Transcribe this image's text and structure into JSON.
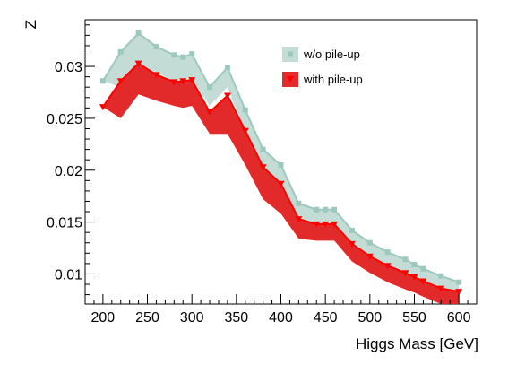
{
  "chart_data": {
    "type": "area",
    "xlabel": "Higgs Mass [GeV]",
    "ylabel": "Z",
    "xlim": [
      180,
      620
    ],
    "ylim": [
      0.0071,
      0.0345
    ],
    "x_ticks": [
      200,
      250,
      300,
      350,
      400,
      450,
      500,
      550,
      600
    ],
    "x_tick_labels": [
      "200",
      "250",
      "300",
      "350",
      "400",
      "450",
      "500",
      "550",
      "600"
    ],
    "y_ticks": [
      0.01,
      0.015,
      0.02,
      0.025,
      0.03
    ],
    "y_tick_labels": [
      "0.01",
      "0.015",
      "0.02",
      "0.025",
      "0.03"
    ],
    "grid": false,
    "legend_position": "top-right",
    "x": [
      200,
      220,
      240,
      260,
      280,
      290,
      300,
      320,
      340,
      360,
      380,
      400,
      420,
      440,
      450,
      460,
      480,
      500,
      520,
      540,
      550,
      560,
      580,
      600
    ],
    "series": [
      {
        "name": "w/o pile-up",
        "color": "#9cc8bd",
        "marker": "square",
        "values": [
          0.0286,
          0.0314,
          0.0332,
          0.0319,
          0.0311,
          0.0309,
          0.0312,
          0.028,
          0.0299,
          0.0258,
          0.022,
          0.0205,
          0.0168,
          0.0162,
          0.0162,
          0.0162,
          0.0142,
          0.013,
          0.0121,
          0.0114,
          0.0109,
          0.0105,
          0.0098,
          0.0092
        ],
        "band_low": [
          0.0286,
          0.028,
          0.0304,
          0.0294,
          0.0286,
          0.0288,
          0.0289,
          0.0262,
          0.028,
          0.0238,
          0.0202,
          0.0188,
          0.0152,
          0.0148,
          0.0148,
          0.0148,
          0.0128,
          0.0118,
          0.0109,
          0.0102,
          0.0098,
          0.0094,
          0.0087,
          0.0084
        ]
      },
      {
        "name": "with pile-up",
        "color": "#ff0000",
        "marker": "triangle-down",
        "values": [
          0.0261,
          0.0286,
          0.0303,
          0.0292,
          0.0285,
          0.0286,
          0.0287,
          0.0256,
          0.0272,
          0.0238,
          0.0203,
          0.0187,
          0.0153,
          0.0148,
          0.0148,
          0.0148,
          0.0129,
          0.0117,
          0.0108,
          0.0101,
          0.0097,
          0.0093,
          0.0086,
          0.0083
        ],
        "band_low": [
          0.0261,
          0.025,
          0.0273,
          0.0267,
          0.0262,
          0.026,
          0.0262,
          0.0235,
          0.0235,
          0.0205,
          0.0172,
          0.0158,
          0.0134,
          0.0132,
          0.0132,
          0.0132,
          0.0112,
          0.0101,
          0.0092,
          0.0085,
          0.0082,
          0.0078,
          0.0071,
          0.0068
        ]
      }
    ]
  }
}
